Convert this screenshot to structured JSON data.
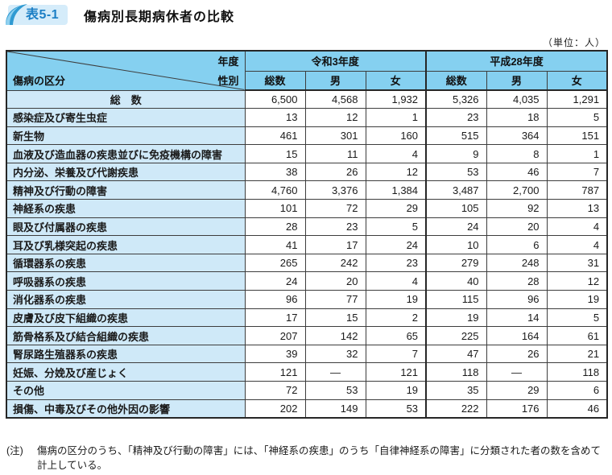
{
  "header": {
    "table_tag": "表5-1",
    "title": "傷病別長期病休者の比較"
  },
  "meta": {
    "unit_label": "（単位：人）"
  },
  "table": {
    "corner": {
      "year_label": "年度",
      "gender_label": "性別",
      "category_label": "傷病の区分"
    },
    "year_groups": [
      "令和3年度",
      "平成28年度"
    ],
    "col_headers": [
      "総数",
      "男",
      "女",
      "総数",
      "男",
      "女"
    ],
    "rows": [
      {
        "label": "総　数",
        "is_total": true,
        "values": [
          "6,500",
          "4,568",
          "1,932",
          "5,326",
          "4,035",
          "1,291"
        ]
      },
      {
        "label": "感染症及び寄生虫症",
        "is_total": false,
        "values": [
          "13",
          "12",
          "1",
          "23",
          "18",
          "5"
        ]
      },
      {
        "label": "新生物",
        "is_total": false,
        "values": [
          "461",
          "301",
          "160",
          "515",
          "364",
          "151"
        ]
      },
      {
        "label": "血液及び造血器の疾患並びに免疫機構の障害",
        "is_total": false,
        "values": [
          "15",
          "11",
          "4",
          "9",
          "8",
          "1"
        ]
      },
      {
        "label": "内分泌、栄養及び代謝疾患",
        "is_total": false,
        "values": [
          "38",
          "26",
          "12",
          "53",
          "46",
          "7"
        ]
      },
      {
        "label": "精神及び行動の障害",
        "is_total": false,
        "values": [
          "4,760",
          "3,376",
          "1,384",
          "3,487",
          "2,700",
          "787"
        ]
      },
      {
        "label": "神経系の疾患",
        "is_total": false,
        "values": [
          "101",
          "72",
          "29",
          "105",
          "92",
          "13"
        ]
      },
      {
        "label": "眼及び付属器の疾患",
        "is_total": false,
        "values": [
          "28",
          "23",
          "5",
          "24",
          "20",
          "4"
        ]
      },
      {
        "label": "耳及び乳様突起の疾患",
        "is_total": false,
        "values": [
          "41",
          "17",
          "24",
          "10",
          "6",
          "4"
        ]
      },
      {
        "label": "循環器系の疾患",
        "is_total": false,
        "values": [
          "265",
          "242",
          "23",
          "279",
          "248",
          "31"
        ]
      },
      {
        "label": "呼吸器系の疾患",
        "is_total": false,
        "values": [
          "24",
          "20",
          "4",
          "40",
          "28",
          "12"
        ]
      },
      {
        "label": "消化器系の疾患",
        "is_total": false,
        "values": [
          "96",
          "77",
          "19",
          "115",
          "96",
          "19"
        ]
      },
      {
        "label": "皮膚及び皮下組織の疾患",
        "is_total": false,
        "values": [
          "17",
          "15",
          "2",
          "19",
          "14",
          "5"
        ]
      },
      {
        "label": "筋骨格系及び結合組織の疾患",
        "is_total": false,
        "values": [
          "207",
          "142",
          "65",
          "225",
          "164",
          "61"
        ]
      },
      {
        "label": "腎尿路生殖器系の疾患",
        "is_total": false,
        "values": [
          "39",
          "32",
          "7",
          "47",
          "26",
          "21"
        ]
      },
      {
        "label": "妊娠、分娩及び産じょく",
        "is_total": false,
        "values": [
          "121",
          "—",
          "121",
          "118",
          "—",
          "118"
        ]
      },
      {
        "label": "その他",
        "is_total": false,
        "values": [
          "72",
          "53",
          "19",
          "35",
          "29",
          "6"
        ]
      },
      {
        "label": "損傷、中毒及びその他外因の影響",
        "is_total": false,
        "values": [
          "202",
          "149",
          "53",
          "222",
          "176",
          "46"
        ]
      }
    ]
  },
  "footnote": {
    "marker": "(注)",
    "text": "傷病の区分のうち、「精神及び行動の障害」には、「神経系の疾患」のうち「自律神経系の障害」に分類された者の数を含めて計上している。"
  },
  "colors": {
    "header_blue": "#85d0f0",
    "label_blue": "#cfe9f8",
    "accent_blue": "#1c7fc5"
  }
}
